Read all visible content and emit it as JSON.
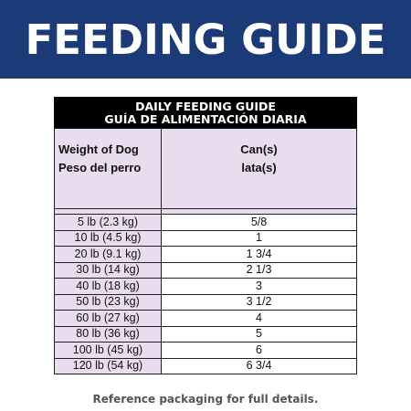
{
  "banner": {
    "title": "FEEDING GUIDE",
    "background": "#1b3a78"
  },
  "table": {
    "title_en": "DAILY FEEDING GUIDE",
    "title_es": "GUÍA DE ALIMENTACIÓN DIARIA",
    "col1_en": "Weight of Dog",
    "col1_es": "Peso del perro",
    "col2_en": "Can(s)",
    "col2_es": "lata(s)",
    "rows": [
      {
        "weight": "5 lb (2.3 kg)",
        "cans": "5/8"
      },
      {
        "weight": "10 lb (4.5 kg)",
        "cans": "1"
      },
      {
        "weight": "20 lb (9.1 kg)",
        "cans": "1 3/4"
      },
      {
        "weight": "30 lb (14 kg)",
        "cans": "2 1/3"
      },
      {
        "weight": "40 lb (18 kg)",
        "cans": "3"
      },
      {
        "weight": "50 lb (23 kg)",
        "cans": "3 1/2"
      },
      {
        "weight": "60 lb (27 kg)",
        "cans": "4"
      },
      {
        "weight": "80 lb (36 kg)",
        "cans": "5"
      },
      {
        "weight": "100 lb (45 kg)",
        "cans": "6"
      },
      {
        "weight": "120 lb (54 kg)",
        "cans": "6 3/4"
      }
    ],
    "header_color": "#000000",
    "label_color": "#e9dcef"
  },
  "footnote": "Reference packaging for full details."
}
